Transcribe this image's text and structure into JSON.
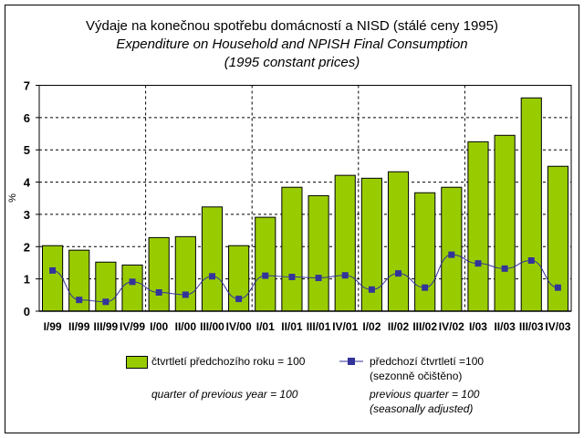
{
  "chart_data": {
    "type": "bar",
    "title": "Výdaje na konečnou spotřebu domácností a NISD (stálé ceny 1995)",
    "subtitle": [
      "Expenditure on Household and NPISH Final Consumption",
      "(1995 constant prices)"
    ],
    "xlabel": "",
    "ylabel": "%",
    "ylim": [
      0,
      7
    ],
    "yticks": [
      "0",
      "1",
      "2",
      "3",
      "4",
      "5",
      "6",
      "7"
    ],
    "grid": true,
    "categories": [
      "I/99",
      "II/99",
      "III/99",
      "IV/99",
      "I/00",
      "II/00",
      "III/00",
      "IV/00",
      "I/01",
      "II/01",
      "III/01",
      "IV/01",
      "I/02",
      "II/02",
      "III/02",
      "IV/02",
      "I/03",
      "II/03",
      "III/03",
      "IV/03"
    ],
    "series": [
      {
        "name": "čtvrtletí předchozího roku = 100",
        "name_en": "quarter of previous year = 100",
        "kind": "bar",
        "color": "#99CC00",
        "values": [
          2.03,
          1.89,
          1.52,
          1.43,
          2.28,
          2.31,
          3.23,
          2.03,
          2.91,
          3.84,
          3.58,
          4.21,
          4.12,
          4.32,
          3.67,
          3.84,
          5.25,
          5.45,
          6.61,
          4.49
        ]
      },
      {
        "name": "předchozí čtvrtletí =100",
        "name2": "(sezonně očištěno)",
        "name_en": "previous quarter = 100",
        "name_en2": "(seasonally adjusted)",
        "kind": "line",
        "color": "#333399",
        "values": [
          1.26,
          0.35,
          0.29,
          0.91,
          0.58,
          0.51,
          1.08,
          0.38,
          1.1,
          1.06,
          1.03,
          1.11,
          0.67,
          1.17,
          0.73,
          1.75,
          1.48,
          1.32,
          1.57,
          0.73
        ]
      }
    ],
    "legend_position": "bottom"
  }
}
